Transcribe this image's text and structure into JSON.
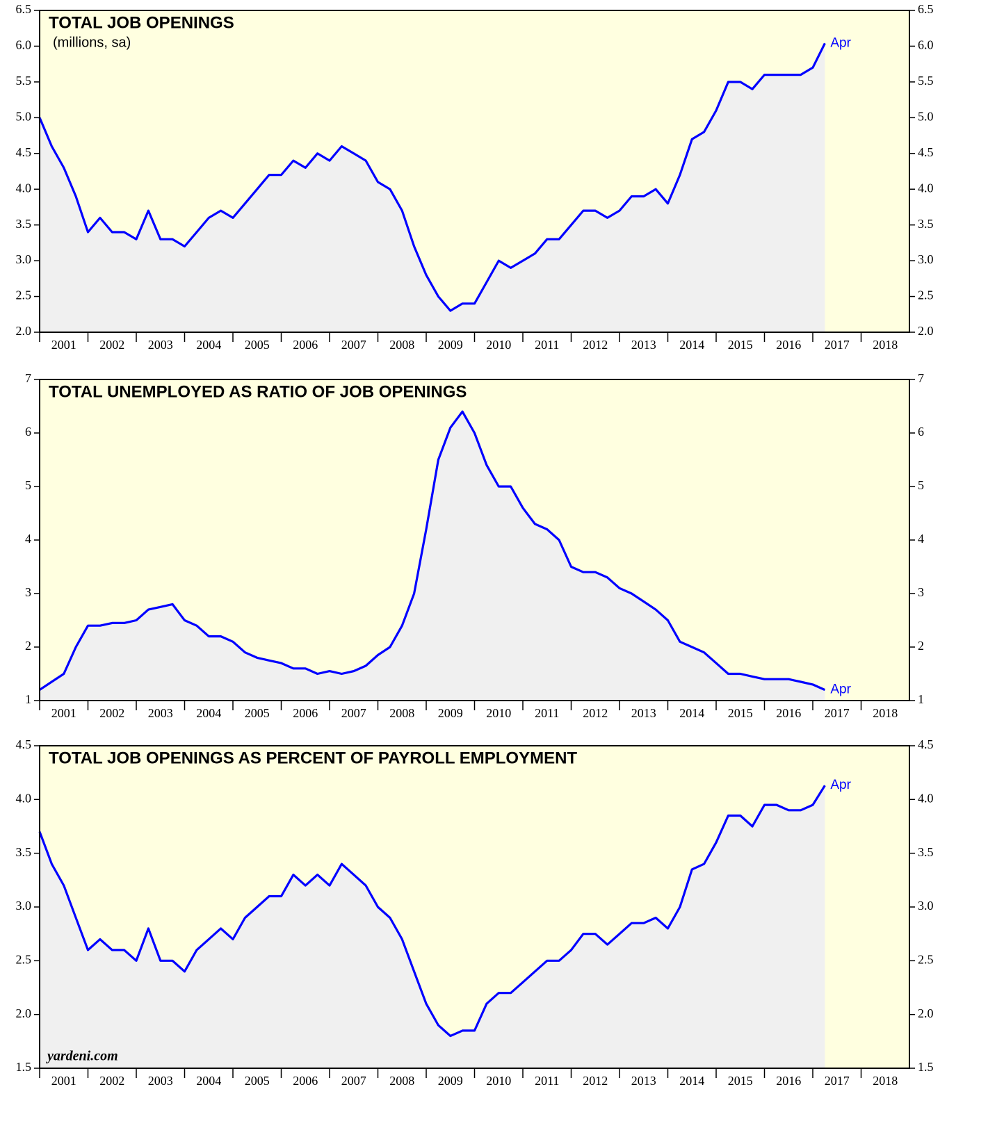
{
  "chart_data": [
    {
      "type": "line",
      "title": "TOTAL JOB OPENINGS",
      "subtitle": "(millions, sa)",
      "annotation": "Apr",
      "color": "#0000ff",
      "fill": "#f0f0f0",
      "background": "#ffffe0",
      "x": [
        2001,
        2001.25,
        2001.5,
        2001.75,
        2002,
        2002.25,
        2002.5,
        2002.75,
        2003,
        2003.25,
        2003.5,
        2003.75,
        2004,
        2004.25,
        2004.5,
        2004.75,
        2005,
        2005.25,
        2005.5,
        2005.75,
        2006,
        2006.25,
        2006.5,
        2006.75,
        2007,
        2007.25,
        2007.5,
        2007.75,
        2008,
        2008.25,
        2008.5,
        2008.75,
        2009,
        2009.25,
        2009.5,
        2009.75,
        2010,
        2010.25,
        2010.5,
        2010.75,
        2011,
        2011.25,
        2011.5,
        2011.75,
        2012,
        2012.25,
        2012.5,
        2012.75,
        2013,
        2013.25,
        2013.5,
        2013.75,
        2014,
        2014.25,
        2014.5,
        2014.75,
        2015,
        2015.25,
        2015.5,
        2015.75,
        2016,
        2016.25,
        2016.5,
        2016.75,
        2017,
        2017.25
      ],
      "values": [
        5.0,
        4.6,
        4.3,
        3.9,
        3.4,
        3.6,
        3.4,
        3.4,
        3.3,
        3.7,
        3.3,
        3.3,
        3.2,
        3.4,
        3.6,
        3.7,
        3.6,
        3.8,
        4.0,
        4.2,
        4.2,
        4.4,
        4.3,
        4.5,
        4.4,
        4.6,
        4.5,
        4.4,
        4.1,
        4.0,
        3.7,
        3.2,
        2.8,
        2.5,
        2.3,
        2.4,
        2.4,
        2.7,
        3.0,
        2.9,
        3.0,
        3.1,
        3.3,
        3.3,
        3.5,
        3.7,
        3.7,
        3.6,
        3.7,
        3.9,
        3.9,
        4.0,
        3.8,
        4.2,
        4.7,
        4.8,
        5.1,
        5.5,
        5.5,
        5.4,
        5.6,
        5.6,
        5.6,
        5.6,
        5.7,
        6.04
      ],
      "xlim": [
        2001,
        2019
      ],
      "xticks": [
        2001,
        2002,
        2003,
        2004,
        2005,
        2006,
        2007,
        2008,
        2009,
        2010,
        2011,
        2012,
        2013,
        2014,
        2015,
        2016,
        2017,
        2018
      ],
      "ylim": [
        2,
        6.5
      ],
      "yticks": [
        {
          "value": 2,
          "label": "2.0"
        },
        {
          "value": 2.5,
          "label": "2.5"
        },
        {
          "value": 3,
          "label": "3.0"
        },
        {
          "value": 3.5,
          "label": "3.5"
        },
        {
          "value": 4,
          "label": "4.0"
        },
        {
          "value": 4.5,
          "label": "4.5"
        },
        {
          "value": 5,
          "label": "5.0"
        },
        {
          "value": 5.5,
          "label": "5.5"
        },
        {
          "value": 6,
          "label": "6.0"
        },
        {
          "value": 6.5,
          "label": "6.5"
        }
      ]
    },
    {
      "type": "line",
      "title": "TOTAL UNEMPLOYED AS RATIO OF JOB OPENINGS",
      "annotation": "Apr",
      "color": "#0000ff",
      "fill": "#f0f0f0",
      "background": "#ffffe0",
      "x": [
        2001,
        2001.25,
        2001.5,
        2001.75,
        2002,
        2002.25,
        2002.5,
        2002.75,
        2003,
        2003.25,
        2003.5,
        2003.75,
        2004,
        2004.25,
        2004.5,
        2004.75,
        2005,
        2005.25,
        2005.5,
        2005.75,
        2006,
        2006.25,
        2006.5,
        2006.75,
        2007,
        2007.25,
        2007.5,
        2007.75,
        2008,
        2008.25,
        2008.5,
        2008.75,
        2009,
        2009.25,
        2009.5,
        2009.75,
        2010,
        2010.25,
        2010.5,
        2010.75,
        2011,
        2011.25,
        2011.5,
        2011.75,
        2012,
        2012.25,
        2012.5,
        2012.75,
        2013,
        2013.25,
        2013.5,
        2013.75,
        2014,
        2014.25,
        2014.5,
        2014.75,
        2015,
        2015.25,
        2015.5,
        2015.75,
        2016,
        2016.25,
        2016.5,
        2016.75,
        2017,
        2017.25
      ],
      "values": [
        1.2,
        1.35,
        1.5,
        2.0,
        2.4,
        2.4,
        2.45,
        2.45,
        2.5,
        2.7,
        2.75,
        2.8,
        2.5,
        2.4,
        2.2,
        2.2,
        2.1,
        1.9,
        1.8,
        1.75,
        1.7,
        1.6,
        1.6,
        1.5,
        1.55,
        1.5,
        1.55,
        1.65,
        1.85,
        2.0,
        2.4,
        3.0,
        4.2,
        5.5,
        6.1,
        6.4,
        6.0,
        5.4,
        5.0,
        5.0,
        4.6,
        4.3,
        4.2,
        4.0,
        3.5,
        3.4,
        3.4,
        3.3,
        3.1,
        3.0,
        2.85,
        2.7,
        2.5,
        2.1,
        2.0,
        1.9,
        1.7,
        1.5,
        1.5,
        1.45,
        1.4,
        1.4,
        1.4,
        1.35,
        1.3,
        1.2
      ],
      "xlim": [
        2001,
        2019
      ],
      "xticks": [
        2001,
        2002,
        2003,
        2004,
        2005,
        2006,
        2007,
        2008,
        2009,
        2010,
        2011,
        2012,
        2013,
        2014,
        2015,
        2016,
        2017,
        2018
      ],
      "ylim": [
        1,
        7
      ],
      "yticks": [
        1,
        2,
        3,
        4,
        5,
        6,
        7
      ]
    },
    {
      "type": "line",
      "title": "TOTAL JOB OPENINGS AS PERCENT OF PAYROLL EMPLOYMENT",
      "annotation": "Apr",
      "source": "yardeni.com",
      "color": "#0000ff",
      "fill": "#f0f0f0",
      "background": "#ffffe0",
      "x": [
        2001,
        2001.25,
        2001.5,
        2001.75,
        2002,
        2002.25,
        2002.5,
        2002.75,
        2003,
        2003.25,
        2003.5,
        2003.75,
        2004,
        2004.25,
        2004.5,
        2004.75,
        2005,
        2005.25,
        2005.5,
        2005.75,
        2006,
        2006.25,
        2006.5,
        2006.75,
        2007,
        2007.25,
        2007.5,
        2007.75,
        2008,
        2008.25,
        2008.5,
        2008.75,
        2009,
        2009.25,
        2009.5,
        2009.75,
        2010,
        2010.25,
        2010.5,
        2010.75,
        2011,
        2011.25,
        2011.5,
        2011.75,
        2012,
        2012.25,
        2012.5,
        2012.75,
        2013,
        2013.25,
        2013.5,
        2013.75,
        2014,
        2014.25,
        2014.5,
        2014.75,
        2015,
        2015.25,
        2015.5,
        2015.75,
        2016,
        2016.25,
        2016.5,
        2016.75,
        2017,
        2017.25
      ],
      "values": [
        3.7,
        3.4,
        3.2,
        2.9,
        2.6,
        2.7,
        2.6,
        2.6,
        2.5,
        2.8,
        2.5,
        2.5,
        2.4,
        2.6,
        2.7,
        2.8,
        2.7,
        2.9,
        3.0,
        3.1,
        3.1,
        3.3,
        3.2,
        3.3,
        3.2,
        3.4,
        3.3,
        3.2,
        3.0,
        2.9,
        2.7,
        2.4,
        2.1,
        1.9,
        1.8,
        1.85,
        1.85,
        2.1,
        2.2,
        2.2,
        2.3,
        2.4,
        2.5,
        2.5,
        2.6,
        2.75,
        2.75,
        2.65,
        2.75,
        2.85,
        2.85,
        2.9,
        2.8,
        3.0,
        3.35,
        3.4,
        3.6,
        3.85,
        3.85,
        3.75,
        3.95,
        3.95,
        3.9,
        3.9,
        3.95,
        4.13
      ],
      "xlim": [
        2001,
        2019
      ],
      "xticks": [
        2001,
        2002,
        2003,
        2004,
        2005,
        2006,
        2007,
        2008,
        2009,
        2010,
        2011,
        2012,
        2013,
        2014,
        2015,
        2016,
        2017,
        2018
      ],
      "ylim": [
        1.5,
        4.5
      ],
      "yticks": [
        {
          "value": 1.5,
          "label": "1.5"
        },
        {
          "value": 2,
          "label": "2.0"
        },
        {
          "value": 2.5,
          "label": "2.5"
        },
        {
          "value": 3,
          "label": "3.0"
        },
        {
          "value": 3.5,
          "label": "3.5"
        },
        {
          "value": 4,
          "label": "4.0"
        },
        {
          "value": 4.5,
          "label": "4.5"
        }
      ]
    }
  ]
}
